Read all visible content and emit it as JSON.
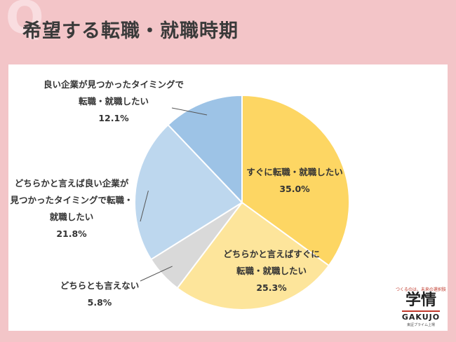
{
  "header": {
    "q_mark": "Q",
    "title": "希望する転職・就職時期"
  },
  "logo": {
    "tagline": "つくるのは、未来の選択肢",
    "mark": "学情",
    "brand": "GAKUJO",
    "sub": "東証プライム上場"
  },
  "chart_data": {
    "type": "pie",
    "title": "",
    "start_angle_deg": 0,
    "direction": "clockwise",
    "slices": [
      {
        "label_lines": [
          "すぐに転職・就職したい"
        ],
        "value": 35.0,
        "value_label": "35.0%",
        "color": "#fdd663"
      },
      {
        "label_lines": [
          "どちらかと言えばすぐに",
          "転職・就職したい"
        ],
        "value": 25.3,
        "value_label": "25.3%",
        "color": "#fde59b"
      },
      {
        "label_lines": [
          "どちらとも言えない"
        ],
        "value": 5.8,
        "value_label": "5.8%",
        "color": "#d9d9d9"
      },
      {
        "label_lines": [
          "どちらかと言えば良い企業が",
          "見つかったタイミングで転職・",
          "就職したい"
        ],
        "value": 21.8,
        "value_label": "21.8%",
        "color": "#bdd7ee"
      },
      {
        "label_lines": [
          "良い企業が見つかったタイミングで",
          "転職・就職したい"
        ],
        "value": 12.1,
        "value_label": "12.1%",
        "color": "#9dc3e6"
      }
    ]
  }
}
